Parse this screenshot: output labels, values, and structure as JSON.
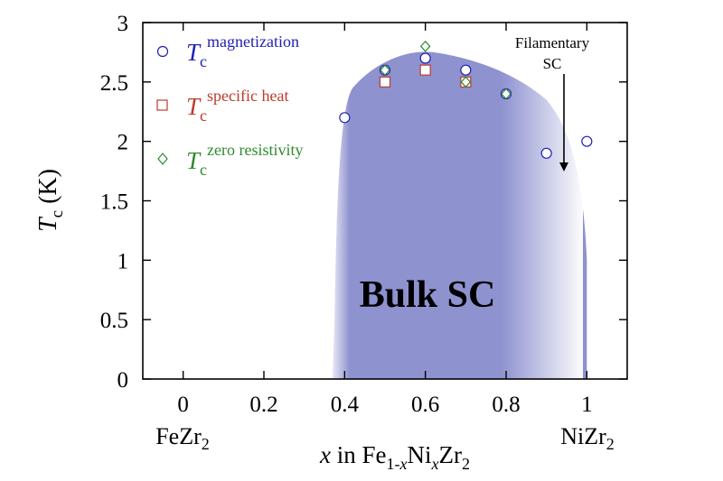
{
  "chart_data": {
    "type": "scatter",
    "xlim": [
      -0.1,
      1.1
    ],
    "ylim": [
      0,
      3
    ],
    "x_ticks": [
      "0",
      "0.2",
      "0.4",
      "0.6",
      "0.8",
      "1"
    ],
    "y_ticks": [
      "0",
      "0.5",
      "1",
      "1.5",
      "2",
      "2.5",
      "3"
    ],
    "ylabel": {
      "main": "T",
      "sub": "c",
      "unit": " (K)"
    },
    "xlabel": {
      "pre": "x in Fe",
      "sub1": "1-",
      "sub1x": "x",
      "mid": "Ni",
      "midx": "x",
      "post": "Zr",
      "sub2": "2"
    },
    "end_labels": {
      "left": {
        "main": "FeZr",
        "sub": "2"
      },
      "right": {
        "main": "NiZr",
        "sub": "2"
      }
    },
    "region_label": "Bulk SC",
    "annotation": {
      "line1": "Filamentary",
      "line2": "SC"
    },
    "colors": {
      "magnetization": "#1f1fb4",
      "specific_heat": "#c0392b",
      "zero_resistivity": "#2e8b2e",
      "region": "#8e92cf"
    },
    "series": [
      {
        "name": "magnetization",
        "marker": "circle",
        "color": "#1f1fb4",
        "points": [
          [
            0.4,
            2.2
          ],
          [
            0.5,
            2.6
          ],
          [
            0.6,
            2.7
          ],
          [
            0.7,
            2.6
          ],
          [
            0.8,
            2.4
          ],
          [
            0.9,
            1.9
          ],
          [
            1.0,
            2.0
          ]
        ]
      },
      {
        "name": "specific heat",
        "marker": "square",
        "color": "#c0392b",
        "points": [
          [
            0.5,
            2.5
          ],
          [
            0.6,
            2.6
          ],
          [
            0.7,
            2.5
          ]
        ]
      },
      {
        "name": "zero resistivity",
        "marker": "diamond",
        "color": "#2e8b2e",
        "points": [
          [
            0.5,
            2.6
          ],
          [
            0.6,
            2.8
          ],
          [
            0.7,
            2.5
          ],
          [
            0.8,
            2.4
          ]
        ]
      }
    ]
  }
}
